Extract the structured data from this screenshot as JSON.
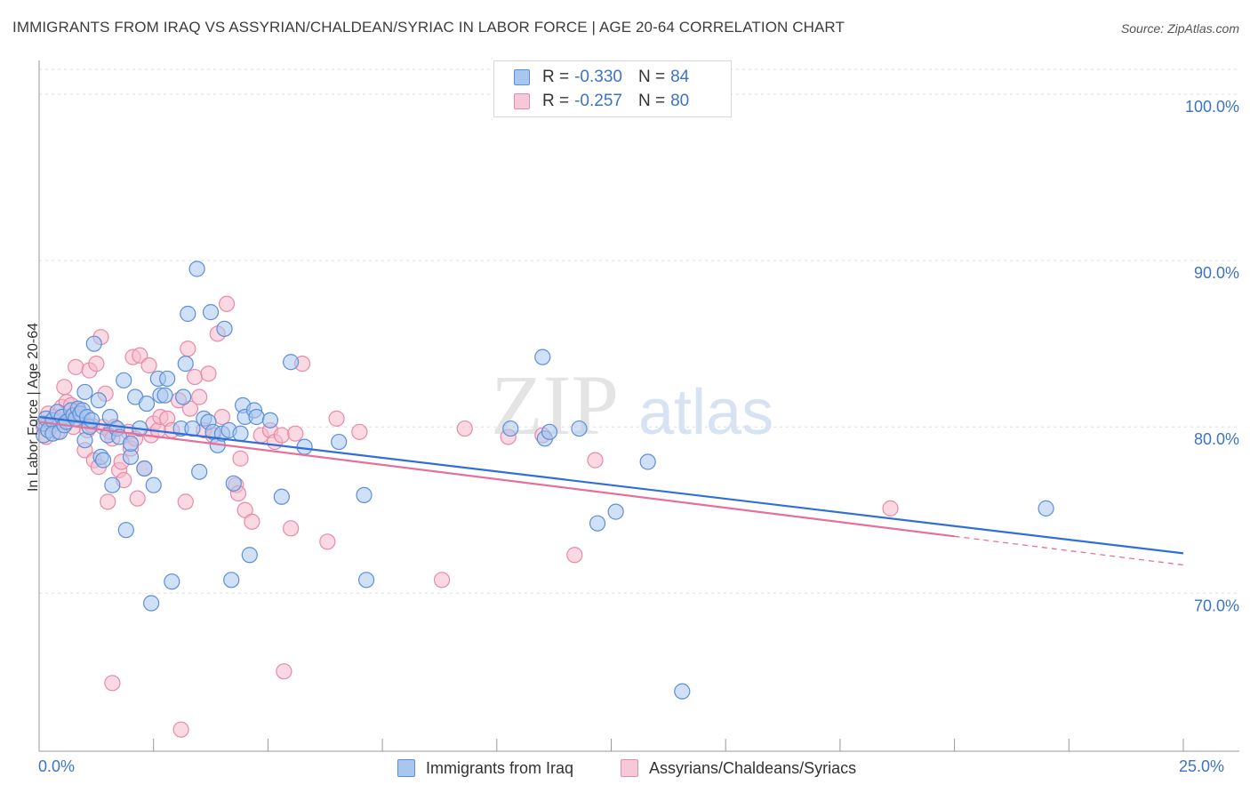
{
  "title": "IMMIGRANTS FROM IRAQ VS ASSYRIAN/CHALDEAN/SYRIAC IN LABOR FORCE | AGE 20-64 CORRELATION CHART",
  "source": "Source: ZipAtlas.com",
  "watermark": {
    "zip": "ZIP",
    "atlas": "atlas"
  },
  "legend": {
    "iraq": {
      "r_label": "R =",
      "r_value": "-0.330",
      "n_label": "N =",
      "n_value": "84"
    },
    "assyrian": {
      "r_label": "R =",
      "r_value": "-0.257",
      "n_label": "N =",
      "n_value": "80"
    }
  },
  "bottom_legend": {
    "iraq": "Immigrants from Iraq",
    "assyrian": "Assyrians/Chaldeans/Syriacs"
  },
  "x_axis": {
    "min_label": "0.0%",
    "max_label": "25.0%"
  },
  "y_axis": {
    "label": "In Labor Force | Age 20-64"
  },
  "colors": {
    "iraq_fill": "#a9c6ef",
    "iraq_stroke": "#5b8fd9",
    "iraq_line": "#2f6fd6",
    "assyrian_fill": "#f6b9cc",
    "assyrian_stroke": "#e88aa8",
    "assyrian_line": "#e5709a",
    "tick_label": "#3b73c9",
    "grid": "#dddddd"
  },
  "chart_data": {
    "type": "scatter",
    "title": "IMMIGRANTS FROM IRAQ VS ASSYRIAN/CHALDEAN/SYRIAC IN LABOR FORCE | AGE 20-64 CORRELATION CHART",
    "xlabel": "",
    "ylabel": "In Labor Force | Age 20-64",
    "xlim": [
      0,
      25
    ],
    "ylim": [
      60.5,
      101.5
    ],
    "yticks": [
      {
        "value": 70,
        "label": "70.0%"
      },
      {
        "value": 80,
        "label": "80.0%"
      },
      {
        "value": 90,
        "label": "90.0%"
      },
      {
        "value": 100,
        "label": "100.0%"
      }
    ],
    "series": [
      {
        "name": "Immigrants from Iraq",
        "r": -0.33,
        "n": 84,
        "trend": {
          "x0": 0,
          "y0": 80.6,
          "x1": 25,
          "y1": 72.4
        },
        "points": [
          [
            0.1,
            79.5
          ],
          [
            0.1,
            80.2
          ],
          [
            0.15,
            80.5
          ],
          [
            0.2,
            79.8
          ],
          [
            0.3,
            80.4
          ],
          [
            0.3,
            79.6
          ],
          [
            0.4,
            80.9
          ],
          [
            0.45,
            79.7
          ],
          [
            0.5,
            80.6
          ],
          [
            0.55,
            80.1
          ],
          [
            0.6,
            80.3
          ],
          [
            0.7,
            81.0
          ],
          [
            0.75,
            80.7
          ],
          [
            0.8,
            80.5
          ],
          [
            0.85,
            81.1
          ],
          [
            0.9,
            80.8
          ],
          [
            0.95,
            81.0
          ],
          [
            1.0,
            82.1
          ],
          [
            1.0,
            79.2
          ],
          [
            1.05,
            80.6
          ],
          [
            1.1,
            80.0
          ],
          [
            1.15,
            80.4
          ],
          [
            1.2,
            85.0
          ],
          [
            1.3,
            81.6
          ],
          [
            1.35,
            78.2
          ],
          [
            1.4,
            78.0
          ],
          [
            1.5,
            79.5
          ],
          [
            1.55,
            80.6
          ],
          [
            1.6,
            76.5
          ],
          [
            1.7,
            79.9
          ],
          [
            1.75,
            79.4
          ],
          [
            1.85,
            82.8
          ],
          [
            1.9,
            73.8
          ],
          [
            2.0,
            78.2
          ],
          [
            2.0,
            79.0
          ],
          [
            2.1,
            81.8
          ],
          [
            2.2,
            79.9
          ],
          [
            2.3,
            77.5
          ],
          [
            2.35,
            81.4
          ],
          [
            2.45,
            69.4
          ],
          [
            2.5,
            76.5
          ],
          [
            2.6,
            82.9
          ],
          [
            2.65,
            81.9
          ],
          [
            2.75,
            81.9
          ],
          [
            2.8,
            82.9
          ],
          [
            2.9,
            70.7
          ],
          [
            3.1,
            79.9
          ],
          [
            3.15,
            81.8
          ],
          [
            3.2,
            83.8
          ],
          [
            3.25,
            86.8
          ],
          [
            3.35,
            79.9
          ],
          [
            3.45,
            89.5
          ],
          [
            3.5,
            77.3
          ],
          [
            3.6,
            80.5
          ],
          [
            3.7,
            80.3
          ],
          [
            3.75,
            86.9
          ],
          [
            3.8,
            79.7
          ],
          [
            3.9,
            78.9
          ],
          [
            4.0,
            79.6
          ],
          [
            4.05,
            85.9
          ],
          [
            4.15,
            79.8
          ],
          [
            4.2,
            70.8
          ],
          [
            4.25,
            76.6
          ],
          [
            4.4,
            79.6
          ],
          [
            4.45,
            81.3
          ],
          [
            4.5,
            80.6
          ],
          [
            4.6,
            72.3
          ],
          [
            4.7,
            81.0
          ],
          [
            4.75,
            80.6
          ],
          [
            5.05,
            80.4
          ],
          [
            5.3,
            75.8
          ],
          [
            5.5,
            83.9
          ],
          [
            5.8,
            78.8
          ],
          [
            6.55,
            79.1
          ],
          [
            7.1,
            75.9
          ],
          [
            7.15,
            70.8
          ],
          [
            10.3,
            79.9
          ],
          [
            11.0,
            84.2
          ],
          [
            11.05,
            79.3
          ],
          [
            11.15,
            79.7
          ],
          [
            11.8,
            79.9
          ],
          [
            12.2,
            74.2
          ],
          [
            12.6,
            74.9
          ],
          [
            13.3,
            77.9
          ],
          [
            14.05,
            64.1
          ],
          [
            22.0,
            75.1
          ]
        ]
      },
      {
        "name": "Assyrians/Chaldeans/Syriacs",
        "r": -0.257,
        "n": 80,
        "trend": {
          "x0": 0,
          "y0": 80.3,
          "x1": 25,
          "y1": 71.7,
          "solid_until": 20
        },
        "points": [
          [
            0.1,
            80.0
          ],
          [
            0.15,
            79.4
          ],
          [
            0.2,
            80.8
          ],
          [
            0.3,
            80.1
          ],
          [
            0.35,
            80.6
          ],
          [
            0.4,
            79.7
          ],
          [
            0.45,
            80.4
          ],
          [
            0.5,
            81.2
          ],
          [
            0.55,
            82.4
          ],
          [
            0.6,
            81.5
          ],
          [
            0.65,
            80.5
          ],
          [
            0.7,
            81.3
          ],
          [
            0.75,
            80.0
          ],
          [
            0.8,
            83.6
          ],
          [
            0.85,
            81.0
          ],
          [
            0.9,
            80.8
          ],
          [
            0.95,
            80.6
          ],
          [
            1.0,
            78.6
          ],
          [
            1.05,
            79.8
          ],
          [
            1.1,
            83.4
          ],
          [
            1.15,
            80.1
          ],
          [
            1.2,
            78.0
          ],
          [
            1.25,
            83.8
          ],
          [
            1.3,
            77.6
          ],
          [
            1.35,
            85.4
          ],
          [
            1.4,
            80.0
          ],
          [
            1.45,
            82.0
          ],
          [
            1.5,
            75.5
          ],
          [
            1.55,
            79.7
          ],
          [
            1.6,
            79.3
          ],
          [
            1.65,
            80.0
          ],
          [
            1.75,
            77.4
          ],
          [
            1.8,
            77.9
          ],
          [
            1.85,
            76.8
          ],
          [
            1.95,
            79.7
          ],
          [
            2.0,
            78.7
          ],
          [
            2.05,
            84.2
          ],
          [
            2.1,
            79.3
          ],
          [
            2.15,
            75.7
          ],
          [
            2.2,
            84.3
          ],
          [
            2.3,
            77.5
          ],
          [
            2.4,
            83.7
          ],
          [
            2.45,
            79.5
          ],
          [
            2.5,
            80.2
          ],
          [
            2.6,
            79.8
          ],
          [
            2.65,
            80.6
          ],
          [
            2.8,
            80.5
          ],
          [
            2.9,
            79.8
          ],
          [
            3.05,
            81.6
          ],
          [
            3.1,
            61.8
          ],
          [
            3.2,
            75.5
          ],
          [
            3.25,
            84.7
          ],
          [
            3.3,
            81.1
          ],
          [
            3.4,
            83.0
          ],
          [
            3.5,
            81.8
          ],
          [
            3.6,
            79.8
          ],
          [
            3.7,
            83.2
          ],
          [
            3.8,
            79.5
          ],
          [
            3.9,
            85.6
          ],
          [
            4.0,
            80.6
          ],
          [
            4.1,
            87.4
          ],
          [
            4.3,
            76.5
          ],
          [
            4.35,
            76.0
          ],
          [
            4.4,
            78.1
          ],
          [
            4.5,
            75.0
          ],
          [
            4.65,
            74.3
          ],
          [
            4.85,
            79.5
          ],
          [
            5.05,
            79.8
          ],
          [
            5.15,
            79.1
          ],
          [
            5.3,
            79.5
          ],
          [
            5.35,
            65.3
          ],
          [
            5.5,
            73.9
          ],
          [
            5.6,
            79.6
          ],
          [
            5.75,
            83.8
          ],
          [
            6.3,
            73.1
          ],
          [
            6.5,
            80.5
          ],
          [
            7.0,
            79.7
          ],
          [
            8.8,
            70.8
          ],
          [
            9.3,
            79.9
          ],
          [
            10.25,
            79.4
          ],
          [
            11.0,
            79.5
          ],
          [
            11.7,
            72.3
          ],
          [
            12.15,
            78.0
          ],
          [
            18.6,
            75.1
          ],
          [
            1.6,
            64.6
          ]
        ]
      }
    ]
  }
}
